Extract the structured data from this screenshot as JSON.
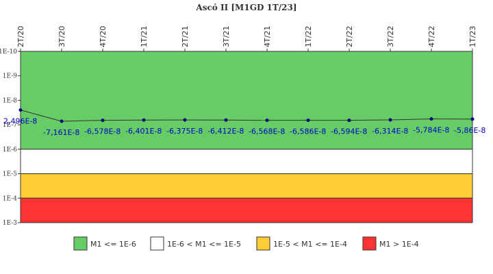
{
  "chart_data": {
    "type": "line",
    "title": "Ascó II [M1GD 1T/23]",
    "xlabel": "",
    "ylabel": "",
    "y_scale": "log",
    "y_axis_inverted": true,
    "ylim": [
      1e-10,
      0.001
    ],
    "y_ticks": [
      "1E-10",
      "1E-9",
      "1E-8",
      "1E-7",
      "1E-6",
      "1E-5",
      "1E-4",
      "1E-3"
    ],
    "categories": [
      "2T/20",
      "3T/20",
      "4T/20",
      "1T/21",
      "2T/21",
      "3T/21",
      "4T/21",
      "1T/22",
      "2T/22",
      "3T/22",
      "4T/22",
      "1T/23"
    ],
    "series": [
      {
        "values": [
          2.496e-08,
          7.161e-08,
          6.578e-08,
          6.401e-08,
          6.375e-08,
          6.412e-08,
          6.568e-08,
          6.586e-08,
          6.594e-08,
          6.314e-08,
          5.784e-08,
          5.86e-08
        ],
        "labels": [
          "2,496E-8",
          "-7,161E-8",
          "-6,578E-8",
          "-6,401E-8",
          "-6,375E-8",
          "-6,412E-8",
          "-6,568E-8",
          "-6,586E-8",
          "-6,594E-8",
          "-6,314E-8",
          "-5,784E-8",
          "-5,86E-8"
        ],
        "color": "#000080"
      }
    ],
    "bands": [
      {
        "from": 1e-10,
        "to": 1e-06,
        "color": "#66cc66",
        "label": "M1 <= 1E-6"
      },
      {
        "from": 1e-06,
        "to": 1e-05,
        "color": "#ffffff",
        "label": "1E-6 < M1 <= 1E-5"
      },
      {
        "from": 1e-05,
        "to": 0.0001,
        "color": "#ffcc33",
        "label": "1E-5 < M1 <= 1E-4"
      },
      {
        "from": 0.0001,
        "to": 0.001,
        "color": "#ff3333",
        "label": "M1 > 1E-4"
      }
    ],
    "grid": false,
    "legend_position": "bottom"
  }
}
